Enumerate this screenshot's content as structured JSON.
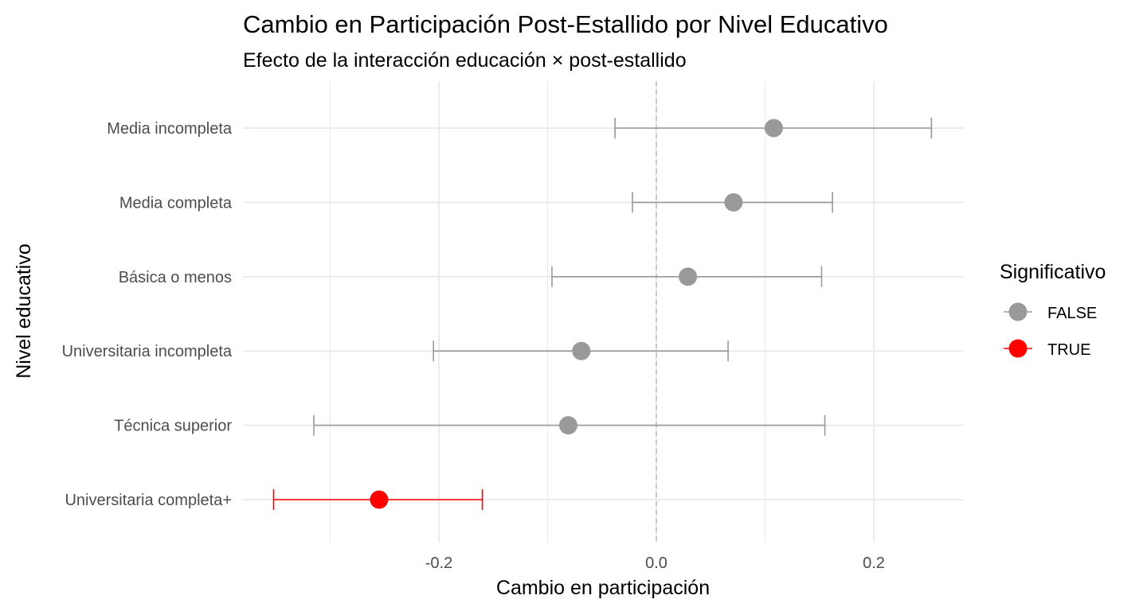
{
  "chart_data": {
    "type": "scatter",
    "subtype": "point-range / forest plot",
    "title": "Cambio en Participación Post-Estallido por Nivel Educativo",
    "subtitle": "Efecto de la interacción educación × post-estallido",
    "xlabel": "Cambio en participación",
    "ylabel": "Nivel educativo",
    "xlim": [
      -0.36,
      0.285
    ],
    "x_ticks": [
      {
        "value": -0.2,
        "label": "-0.2"
      },
      {
        "value": 0.0,
        "label": "0.0"
      },
      {
        "value": 0.2,
        "label": "0.2"
      }
    ],
    "x_minor_gridlines": [
      -0.3,
      -0.1,
      0.1
    ],
    "grid": true,
    "reference_line": {
      "x": 0,
      "style": "dashed"
    },
    "categories": [
      "Media incompleta",
      "Media completa",
      "Básica o menos",
      "Universitaria incompleta",
      "Técnica superior",
      "Universitaria completa+"
    ],
    "points": [
      {
        "category": "Media incompleta",
        "estimate": 0.108,
        "lower": -0.038,
        "upper": 0.253,
        "significant": "FALSE"
      },
      {
        "category": "Media completa",
        "estimate": 0.071,
        "lower": -0.022,
        "upper": 0.162,
        "significant": "FALSE"
      },
      {
        "category": "Básica o menos",
        "estimate": 0.029,
        "lower": -0.096,
        "upper": 0.152,
        "significant": "FALSE"
      },
      {
        "category": "Universitaria incompleta",
        "estimate": -0.069,
        "lower": -0.205,
        "upper": 0.066,
        "significant": "FALSE"
      },
      {
        "category": "Técnica superior",
        "estimate": -0.081,
        "lower": -0.315,
        "upper": 0.155,
        "significant": "FALSE"
      },
      {
        "category": "Universitaria completa+",
        "estimate": -0.255,
        "lower": -0.352,
        "upper": -0.16,
        "significant": "TRUE"
      }
    ],
    "legend": {
      "title": "Significativo",
      "position": "right",
      "items": [
        {
          "label": "FALSE",
          "color": "#999999"
        },
        {
          "label": "TRUE",
          "color": "#ff0000"
        }
      ]
    },
    "colors": {
      "FALSE": "#999999",
      "TRUE": "#ff0000",
      "grid": "#ebebeb",
      "reference": "#bbbbbb"
    }
  }
}
